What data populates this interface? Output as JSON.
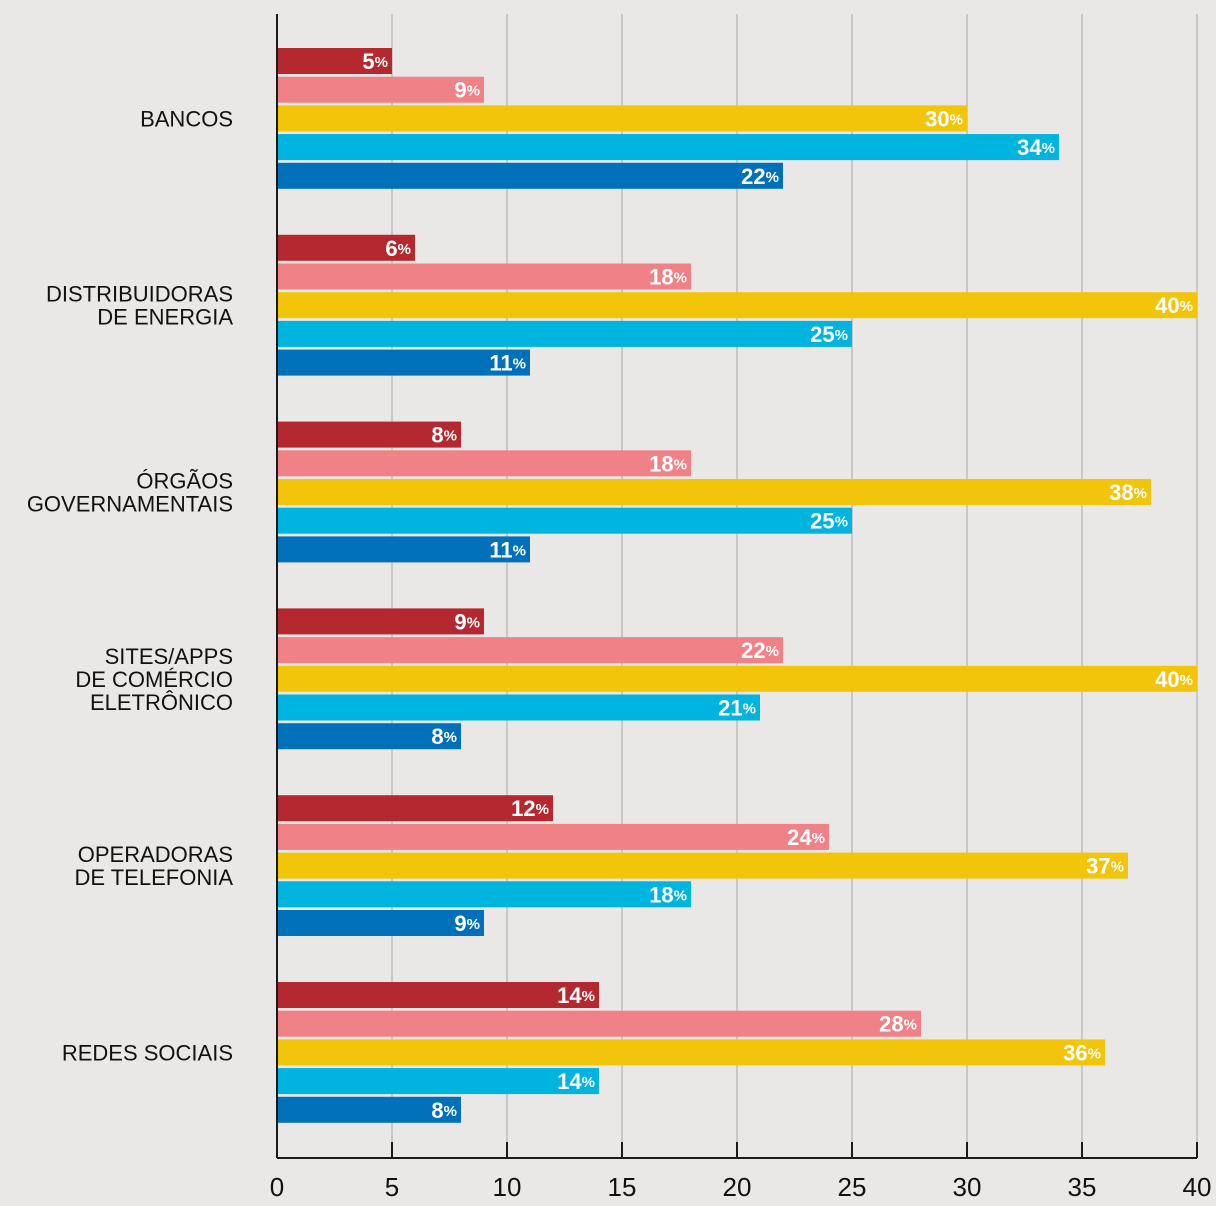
{
  "chart_data": {
    "type": "bar",
    "orientation": "horizontal",
    "categories": [
      [
        "BANCOS"
      ],
      [
        "DISTRIBUIDORAS",
        "DE ENERGIA"
      ],
      [
        "ÓRGÃOS",
        "GOVERNAMENTAIS"
      ],
      [
        "SITES/APPS",
        "DE COMÉRCIO",
        "ELETRÔNICO"
      ],
      [
        "OPERADORAS",
        "DE TELEFONIA"
      ],
      [
        "REDES SOCIAIS"
      ]
    ],
    "series": [
      {
        "color": "#b5282f",
        "values": [
          5,
          6,
          8,
          9,
          12,
          14
        ]
      },
      {
        "color": "#f08186",
        "values": [
          9,
          18,
          18,
          22,
          24,
          28
        ]
      },
      {
        "color": "#f2c50a",
        "values": [
          30,
          40,
          38,
          40,
          37,
          36
        ]
      },
      {
        "color": "#00b4e0",
        "values": [
          34,
          25,
          25,
          21,
          18,
          14
        ]
      },
      {
        "color": "#0070bb",
        "values": [
          22,
          11,
          11,
          8,
          9,
          8
        ]
      }
    ],
    "value_suffix": "%",
    "xlim": [
      0,
      40
    ],
    "xticks": [
      0,
      5,
      10,
      15,
      20,
      25,
      30,
      35,
      40
    ],
    "grid": "vertical",
    "colors": {
      "background": "#e9e8e6",
      "grid": "#bdbdbd",
      "axis": "#1a1a1a",
      "text": "#111111",
      "label": "#ffffff"
    }
  }
}
